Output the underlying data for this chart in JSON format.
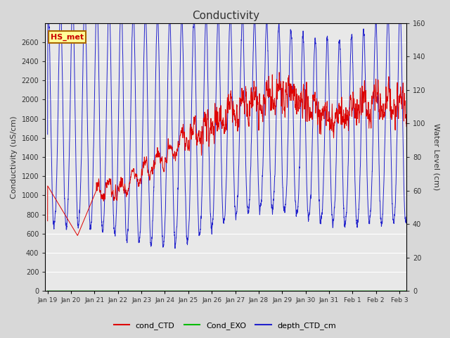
{
  "title": "Conductivity",
  "ylabel_left": "Conductivity (uS/cm)",
  "ylabel_right": "Water Level (cm)",
  "ylim_left": [
    0,
    2800
  ],
  "ylim_right": [
    0,
    160
  ],
  "yticks_left": [
    0,
    200,
    400,
    600,
    800,
    1000,
    1200,
    1400,
    1600,
    1800,
    2000,
    2200,
    2400,
    2600
  ],
  "yticks_right": [
    0,
    20,
    40,
    60,
    80,
    100,
    120,
    140,
    160
  ],
  "bg_color": "#d8d8d8",
  "plot_bg_color": "#e8e8e8",
  "grid_color": "#ffffff",
  "cond_CTD_color": "#dd0000",
  "Cond_EXO_color": "#00bb00",
  "depth_CTD_color": "#2222cc",
  "annotation_text": "HS_met",
  "annotation_bg": "#ffff99",
  "annotation_border": "#aa6600",
  "legend_labels": [
    "cond_CTD",
    "Cond_EXO",
    "depth_CTD_cm"
  ],
  "x_tick_labels": [
    "Jan 19",
    "Jan 20",
    "Jan 21",
    "Jan 22",
    "Jan 23",
    "Jan 24",
    "Jan 25",
    "Jan 26",
    "Jan 27",
    "Jan 28",
    "Jan 29",
    "Jan 30",
    "Jan 31",
    "Feb 1",
    "Feb 2",
    "Feb 3"
  ]
}
